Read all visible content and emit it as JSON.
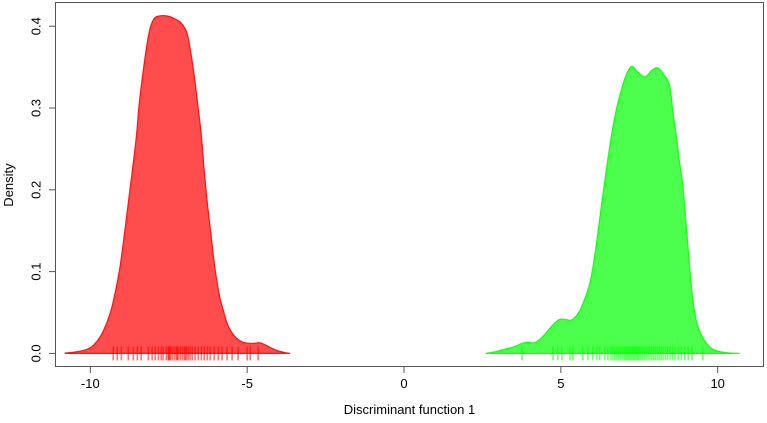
{
  "figure": {
    "background": "#ffffff",
    "axis_color": "#555555",
    "text_color": "#000000"
  },
  "chart_data": {
    "type": "area",
    "title": "",
    "xlabel": "Discriminant function 1",
    "ylabel": "Density",
    "grid": false,
    "legend": false,
    "xlim": [
      -11.11,
      11.46
    ],
    "ylim": [
      -0.016,
      0.429
    ],
    "x_ticks": {
      "values": [
        -10,
        -5,
        0,
        5,
        10
      ],
      "labels": [
        "-10",
        "-5",
        "0",
        "5",
        "10"
      ]
    },
    "y_ticks": {
      "values": [
        0,
        0.1,
        0.2,
        0.3,
        0.4
      ],
      "labels": [
        "0.0",
        "0.1",
        "0.2",
        "0.3",
        "0.4"
      ]
    },
    "series": [
      {
        "name": "group-red",
        "color": "#ff0000",
        "fill_opacity": 0.7,
        "stroke_opacity": 0.88,
        "points": [
          [
            -10.8,
            0.0005
          ],
          [
            -10.45,
            0.002
          ],
          [
            -10.1,
            0.005
          ],
          [
            -9.9,
            0.01
          ],
          [
            -9.66,
            0.022
          ],
          [
            -9.45,
            0.04
          ],
          [
            -9.29,
            0.06
          ],
          [
            -9.07,
            0.102
          ],
          [
            -8.92,
            0.144
          ],
          [
            -8.79,
            0.184
          ],
          [
            -8.66,
            0.224
          ],
          [
            -8.53,
            0.266
          ],
          [
            -8.44,
            0.306
          ],
          [
            -8.31,
            0.346
          ],
          [
            -8.15,
            0.388
          ],
          [
            -7.99,
            0.408
          ],
          [
            -7.8,
            0.4125
          ],
          [
            -7.55,
            0.4125
          ],
          [
            -7.3,
            0.409
          ],
          [
            -7.13,
            0.405
          ],
          [
            -6.98,
            0.397
          ],
          [
            -6.88,
            0.386
          ],
          [
            -6.71,
            0.346
          ],
          [
            -6.58,
            0.306
          ],
          [
            -6.46,
            0.266
          ],
          [
            -6.37,
            0.224
          ],
          [
            -6.27,
            0.184
          ],
          [
            -6.15,
            0.144
          ],
          [
            -6.02,
            0.102
          ],
          [
            -5.88,
            0.07
          ],
          [
            -5.8,
            0.058
          ],
          [
            -5.65,
            0.038
          ],
          [
            -5.5,
            0.026
          ],
          [
            -5.35,
            0.019
          ],
          [
            -5.15,
            0.014
          ],
          [
            -4.95,
            0.0125
          ],
          [
            -4.75,
            0.0125
          ],
          [
            -4.59,
            0.013
          ],
          [
            -4.4,
            0.01
          ],
          [
            -4.2,
            0.006
          ],
          [
            -4.0,
            0.003
          ],
          [
            -3.8,
            0.001
          ],
          [
            -3.63,
            0.0
          ]
        ],
        "rug": [
          -9.27,
          -9.14,
          -9.01,
          -8.79,
          -8.63,
          -8.5,
          -8.38,
          -8.15,
          -8.03,
          -7.93,
          -7.83,
          -7.74,
          -7.68,
          -7.58,
          -7.52,
          -7.5,
          -7.47,
          -7.45,
          -7.39,
          -7.32,
          -7.26,
          -7.23,
          -7.2,
          -7.13,
          -7.07,
          -7.01,
          -6.97,
          -6.94,
          -6.88,
          -6.82,
          -6.75,
          -6.66,
          -6.56,
          -6.46,
          -6.37,
          -6.27,
          -6.18,
          -6.05,
          -5.92,
          -5.8,
          -5.64,
          -5.48,
          -5.29,
          -5.0,
          -4.9,
          -4.65
        ]
      },
      {
        "name": "group-green",
        "color": "#00ff00",
        "fill_opacity": 0.7,
        "stroke_opacity": 0.88,
        "points": [
          [
            2.6,
            0.0
          ],
          [
            2.9,
            0.002
          ],
          [
            3.2,
            0.005
          ],
          [
            3.5,
            0.008
          ],
          [
            3.75,
            0.012
          ],
          [
            3.95,
            0.0138
          ],
          [
            4.15,
            0.013
          ],
          [
            4.35,
            0.018
          ],
          [
            4.55,
            0.026
          ],
          [
            4.75,
            0.035
          ],
          [
            4.95,
            0.0415
          ],
          [
            5.15,
            0.0415
          ],
          [
            5.35,
            0.041
          ],
          [
            5.6,
            0.052
          ],
          [
            5.82,
            0.073
          ],
          [
            5.95,
            0.09
          ],
          [
            6.1,
            0.125
          ],
          [
            6.25,
            0.168
          ],
          [
            6.4,
            0.211
          ],
          [
            6.62,
            0.268
          ],
          [
            6.78,
            0.3
          ],
          [
            6.98,
            0.329
          ],
          [
            7.1,
            0.342
          ],
          [
            7.26,
            0.351
          ],
          [
            7.45,
            0.344
          ],
          [
            7.68,
            0.338
          ],
          [
            7.9,
            0.346
          ],
          [
            8.09,
            0.349
          ],
          [
            8.3,
            0.34
          ],
          [
            8.47,
            0.327
          ],
          [
            8.57,
            0.296
          ],
          [
            8.69,
            0.263
          ],
          [
            8.79,
            0.232
          ],
          [
            8.89,
            0.205
          ],
          [
            9.0,
            0.155
          ],
          [
            9.11,
            0.104
          ],
          [
            9.22,
            0.062
          ],
          [
            9.35,
            0.035
          ],
          [
            9.49,
            0.022
          ],
          [
            9.65,
            0.012
          ],
          [
            9.85,
            0.005
          ],
          [
            10.1,
            0.002
          ],
          [
            10.4,
            0.0005
          ],
          [
            10.7,
            0.0
          ]
        ],
        "rug": [
          3.76,
          4.75,
          4.9,
          5.03,
          5.29,
          5.38,
          5.7,
          5.86,
          6.02,
          6.15,
          6.24,
          6.4,
          6.5,
          6.6,
          6.66,
          6.72,
          6.78,
          6.84,
          6.9,
          6.96,
          7.02,
          7.06,
          7.1,
          7.14,
          7.18,
          7.22,
          7.26,
          7.3,
          7.34,
          7.38,
          7.42,
          7.46,
          7.5,
          7.55,
          7.6,
          7.66,
          7.72,
          7.78,
          7.84,
          7.9,
          7.96,
          8.02,
          8.08,
          8.14,
          8.2,
          8.26,
          8.33,
          8.4,
          8.48,
          8.56,
          8.64,
          8.74,
          8.84,
          8.95,
          9.06,
          9.18,
          9.52
        ]
      }
    ]
  }
}
